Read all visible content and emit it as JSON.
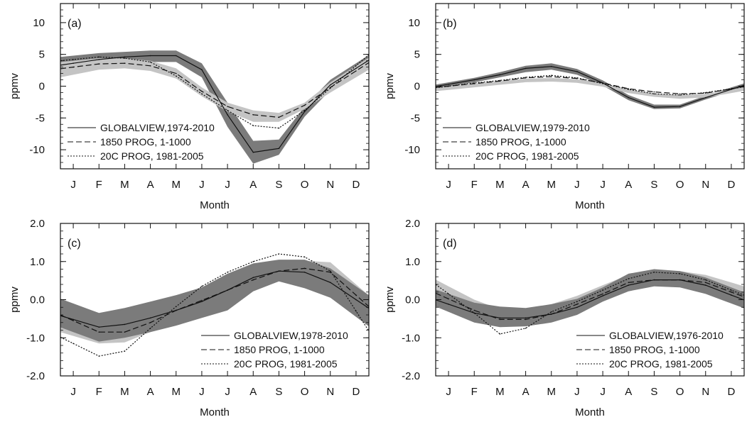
{
  "chart_data": [
    {
      "type": "line",
      "panel_label": "(a)",
      "title": "",
      "xlabel": "Month",
      "ylabel": "ppmv",
      "categories": [
        "J",
        "F",
        "M",
        "A",
        "M",
        "J",
        "J",
        "A",
        "S",
        "O",
        "N",
        "D"
      ],
      "ylim": [
        -13,
        13
      ],
      "yticks": [
        10,
        5,
        0,
        -5,
        -10
      ],
      "ytick_labels": [
        "10",
        "5",
        "0",
        "-5",
        "-10"
      ],
      "series": [
        {
          "name": "GLOBALVIEW,1974-2010",
          "style": "solid",
          "values": [
            3.6,
            4.2,
            4.6,
            4.8,
            4.8,
            2.6,
            -4.5,
            -10.4,
            -9.8,
            -4.0,
            0.2,
            2.8
          ]
        },
        {
          "name": "1850 PROG, 1-1000",
          "style": "dashed",
          "values": [
            3.0,
            3.5,
            3.6,
            3.2,
            2.0,
            -0.8,
            -3.2,
            -4.5,
            -4.9,
            -3.0,
            -0.2,
            2.4
          ]
        },
        {
          "name": "20C PROG, 1981-2005",
          "style": "dotted",
          "values": [
            4.2,
            4.6,
            4.4,
            3.8,
            1.6,
            -1.2,
            -3.8,
            -6.2,
            -6.6,
            -3.8,
            -0.3,
            3.2
          ]
        }
      ],
      "bands": [
        {
          "color": "#7b7b7b",
          "lower": [
            2.6,
            3.2,
            3.6,
            3.8,
            3.8,
            1.4,
            -6.4,
            -12.2,
            -10.8,
            -4.8,
            -0.6,
            2.0
          ],
          "upper": [
            4.8,
            5.2,
            5.4,
            5.6,
            5.6,
            3.6,
            -2.6,
            -8.6,
            -8.4,
            -3.2,
            1.0,
            3.6
          ]
        },
        {
          "color": "#c4c4c4",
          "lower": [
            1.8,
            2.6,
            2.8,
            2.4,
            1.2,
            -1.6,
            -4.0,
            -5.6,
            -5.6,
            -3.6,
            -1.0,
            1.4
          ],
          "upper": [
            4.0,
            4.4,
            4.4,
            4.0,
            2.8,
            -0.2,
            -2.6,
            -3.8,
            -4.2,
            -2.6,
            0.6,
            3.2
          ]
        }
      ],
      "legend_position": "lower-left",
      "colors": {
        "band_model": "#7b7b7b",
        "band_light": "#c4c4c4",
        "line": "#111111"
      }
    },
    {
      "type": "line",
      "panel_label": "(b)",
      "title": "",
      "xlabel": "Month",
      "ylabel": "ppmv",
      "categories": [
        "J",
        "F",
        "M",
        "A",
        "M",
        "J",
        "J",
        "A",
        "S",
        "O",
        "N",
        "D"
      ],
      "ylim": [
        -13,
        13
      ],
      "yticks": [
        10,
        5,
        0,
        -5,
        -10
      ],
      "ytick_labels": [
        "10",
        "5",
        "0",
        "-5",
        "-10"
      ],
      "series": [
        {
          "name": "GLOBALVIEW,1979-2010",
          "style": "solid",
          "values": [
            0.3,
            1.0,
            1.8,
            2.8,
            3.1,
            2.3,
            0.5,
            -1.8,
            -3.3,
            -3.2,
            -1.8,
            -0.5
          ]
        },
        {
          "name": "1850 PROG, 1-1000",
          "style": "dashed",
          "values": [
            0.0,
            0.4,
            0.8,
            1.3,
            1.5,
            1.2,
            0.5,
            -0.4,
            -0.9,
            -1.2,
            -1.1,
            -0.4
          ]
        },
        {
          "name": "20C PROG, 1981-2005",
          "style": "dotted",
          "values": [
            0.0,
            0.5,
            0.9,
            1.4,
            1.7,
            1.3,
            0.4,
            -0.5,
            -1.2,
            -1.4,
            -1.0,
            -0.4
          ]
        }
      ],
      "bands": [
        {
          "color": "#7b7b7b",
          "lower": [
            0.0,
            0.6,
            1.4,
            2.2,
            2.6,
            1.8,
            0.1,
            -2.2,
            -3.6,
            -3.5,
            -2.1,
            -0.8
          ],
          "upper": [
            0.6,
            1.3,
            2.2,
            3.2,
            3.6,
            2.7,
            0.9,
            -1.4,
            -2.9,
            -2.9,
            -1.5,
            -0.2
          ]
        },
        {
          "color": "#c4c4c4",
          "lower": [
            -0.3,
            0.1,
            0.5,
            0.9,
            1.0,
            0.8,
            0.2,
            -0.8,
            -1.4,
            -1.7,
            -1.5,
            -0.8
          ]
        }
      ],
      "legend_position": "lower-left",
      "colors": {
        "band_model": "#7b7b7b",
        "band_light": "#c4c4c4",
        "line": "#111111"
      }
    },
    {
      "type": "line",
      "panel_label": "(c)",
      "title": "",
      "xlabel": "Month",
      "ylabel": "ppmv",
      "categories": [
        "J",
        "F",
        "M",
        "A",
        "M",
        "J",
        "J",
        "A",
        "S",
        "O",
        "N",
        "D"
      ],
      "ylim": [
        -2.0,
        2.0
      ],
      "yticks": [
        2.0,
        1.0,
        0.0,
        -1.0,
        -2.0
      ],
      "ytick_labels": [
        "2.0",
        "1.0",
        "0.0",
        "-1.0",
        "-2.0"
      ],
      "series": [
        {
          "name": "GLOBALVIEW,1978-2010",
          "style": "solid",
          "values": [
            -0.52,
            -0.72,
            -0.65,
            -0.48,
            -0.28,
            -0.05,
            0.25,
            0.58,
            0.75,
            0.72,
            0.45,
            0.0
          ]
        },
        {
          "name": "1850 PROG, 1-1000",
          "style": "dashed",
          "values": [
            -0.55,
            -0.85,
            -0.85,
            -0.6,
            -0.28,
            -0.02,
            0.25,
            0.52,
            0.75,
            0.82,
            0.72,
            0.12
          ]
        },
        {
          "name": "20C PROG, 1981-2005",
          "style": "dotted",
          "values": [
            -1.15,
            -1.48,
            -1.35,
            -0.75,
            -0.18,
            0.35,
            0.72,
            1.0,
            1.2,
            1.12,
            0.75,
            -0.3
          ]
        }
      ],
      "bands": [
        {
          "color": "#c4c4c4",
          "lower": [
            -0.95,
            -1.15,
            -1.12,
            -0.85,
            -0.5,
            -0.15,
            0.15,
            0.42,
            0.6,
            0.62,
            0.45,
            -0.1
          ],
          "upper": [
            -0.2,
            -0.48,
            -0.48,
            -0.28,
            0.0,
            0.22,
            0.45,
            0.72,
            0.92,
            1.02,
            0.98,
            0.4
          ]
        },
        {
          "color": "#7b7b7b",
          "lower": [
            -0.85,
            -1.1,
            -1.0,
            -0.85,
            -0.68,
            -0.48,
            -0.28,
            0.22,
            0.48,
            0.3,
            0.05,
            -0.45
          ],
          "upper": [
            -0.1,
            -0.35,
            -0.22,
            -0.05,
            0.12,
            0.32,
            0.68,
            0.95,
            1.05,
            1.05,
            0.82,
            0.35
          ]
        }
      ],
      "legend_position": "lower-right",
      "colors": {
        "band_model": "#7b7b7b",
        "band_light": "#c4c4c4",
        "line": "#111111"
      }
    },
    {
      "type": "line",
      "panel_label": "(d)",
      "title": "",
      "xlabel": "Month",
      "ylabel": "ppmv",
      "categories": [
        "J",
        "F",
        "M",
        "A",
        "M",
        "J",
        "J",
        "A",
        "S",
        "O",
        "N",
        "D"
      ],
      "ylim": [
        -2.0,
        2.0
      ],
      "yticks": [
        2.0,
        1.0,
        0.0,
        -1.0,
        -2.0
      ],
      "ytick_labels": [
        "2.0",
        "1.0",
        "0.0",
        "-1.0",
        "-2.0"
      ],
      "series": [
        {
          "name": "GLOBALVIEW,1976-2010",
          "style": "solid",
          "values": [
            -0.12,
            -0.35,
            -0.48,
            -0.48,
            -0.38,
            -0.2,
            0.1,
            0.38,
            0.52,
            0.52,
            0.38,
            0.12
          ]
        },
        {
          "name": "1850 PROG, 1-1000",
          "style": "dashed",
          "values": [
            0.02,
            -0.28,
            -0.52,
            -0.52,
            -0.38,
            -0.12,
            0.15,
            0.45,
            0.52,
            0.52,
            0.45,
            0.2
          ]
        },
        {
          "name": "20C PROG, 1981-2005",
          "style": "dotted",
          "values": [
            0.15,
            -0.35,
            -0.9,
            -0.75,
            -0.32,
            -0.05,
            0.25,
            0.55,
            0.72,
            0.68,
            0.52,
            0.25
          ]
        }
      ],
      "bands": [
        {
          "color": "#c4c4c4",
          "lower": [
            -0.05,
            -0.35,
            -0.55,
            -0.55,
            -0.4,
            -0.15,
            0.1,
            0.35,
            0.45,
            0.48,
            0.38,
            0.15
          ],
          "upper": [
            0.35,
            0.0,
            -0.25,
            -0.25,
            -0.12,
            0.1,
            0.38,
            0.65,
            0.75,
            0.75,
            0.65,
            0.45
          ]
        },
        {
          "color": "#7b7b7b",
          "lower": [
            -0.32,
            -0.6,
            -0.72,
            -0.7,
            -0.6,
            -0.4,
            -0.05,
            0.22,
            0.35,
            0.32,
            0.15,
            -0.1
          ],
          "upper": [
            0.15,
            -0.08,
            -0.18,
            -0.22,
            -0.12,
            0.02,
            0.32,
            0.68,
            0.8,
            0.75,
            0.58,
            0.32
          ]
        }
      ],
      "legend_position": "lower-right",
      "colors": {
        "band_model": "#7b7b7b",
        "band_light": "#c4c4c4",
        "line": "#111111"
      }
    }
  ]
}
